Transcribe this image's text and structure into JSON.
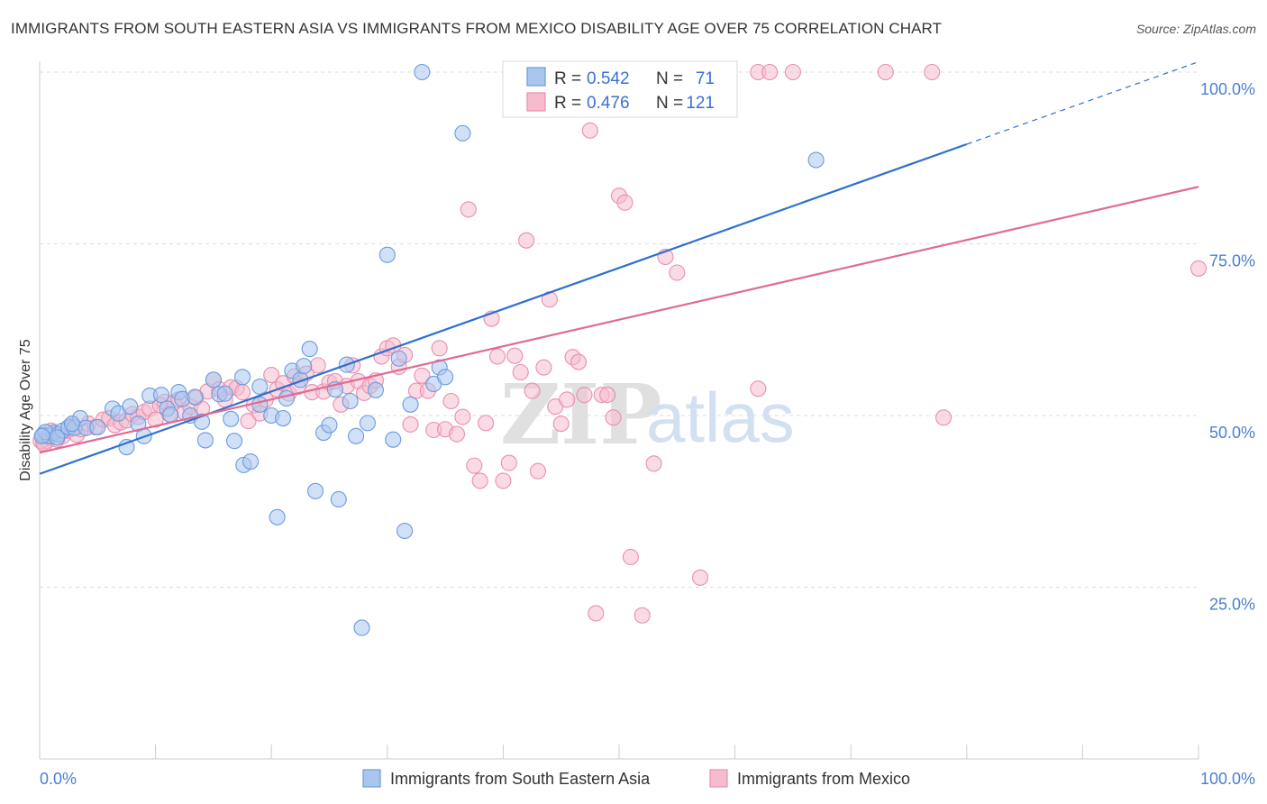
{
  "title": "IMMIGRANTS FROM SOUTH EASTERN ASIA VS IMMIGRANTS FROM MEXICO DISABILITY AGE OVER 75 CORRELATION CHART",
  "source": "Source: ZipAtlas.com",
  "watermark": {
    "zip": "ZIP",
    "atlas": "atlas"
  },
  "stats_box": {
    "series1": {
      "r_label": "R = ",
      "r_value": "0.542",
      "n_label": "N = ",
      "n_value": "71"
    },
    "series2": {
      "r_label": "R = ",
      "r_value": "0.476",
      "n_label": "N = ",
      "n_value": "121"
    }
  },
  "colors": {
    "blue_fill": "#a9c7ee",
    "blue_stroke": "#6b9be0",
    "blue_line": "#2f6fcf",
    "pink_fill": "#f6bccd",
    "pink_stroke": "#e98fad",
    "pink_line": "#e06a96",
    "grid": "#dcdcdc",
    "tick_text": "#4a7fd1"
  },
  "chart_data": {
    "type": "scatter",
    "title": "IMMIGRANTS FROM SOUTH EASTERN ASIA VS IMMIGRANTS FROM MEXICO DISABILITY AGE OVER 75 CORRELATION CHART",
    "xlabel": "",
    "ylabel": "Disability Age Over 75",
    "xlim": [
      0,
      100
    ],
    "ylim": [
      0,
      100
    ],
    "x_tick_labels": [
      "0.0%",
      "100.0%"
    ],
    "y_ticks": [
      {
        "value": 25,
        "label": "25.0%"
      },
      {
        "value": 50,
        "label": "50.0%"
      },
      {
        "value": 75,
        "label": "75.0%"
      },
      {
        "value": 100,
        "label": "100.0%"
      }
    ],
    "grid": true,
    "legend_position": "bottom",
    "series": [
      {
        "name": "Immigrants from South Eastern Asia",
        "color": "#6b9be0",
        "r": 0.542,
        "n": 71,
        "trend": {
          "x0": 0,
          "y0": 41.5,
          "x1": 80,
          "y1": 89.5,
          "dashed_to": {
            "x": 100,
            "y": 101.5
          }
        },
        "points": [
          [
            0.3,
            47.2
          ],
          [
            0.8,
            47.0
          ],
          [
            1.2,
            47.5
          ],
          [
            1.6,
            47.3
          ],
          [
            2.0,
            47.8
          ],
          [
            2.5,
            48.3
          ],
          [
            3.0,
            48.2
          ],
          [
            3.5,
            49.6
          ],
          [
            4.0,
            48.2
          ],
          [
            5.0,
            48.3
          ],
          [
            6.3,
            51.0
          ],
          [
            6.8,
            50.3
          ],
          [
            7.5,
            45.4
          ],
          [
            7.8,
            51.3
          ],
          [
            8.5,
            48.8
          ],
          [
            9.0,
            47.0
          ],
          [
            9.5,
            52.9
          ],
          [
            10.5,
            53.0
          ],
          [
            11.0,
            51.0
          ],
          [
            11.3,
            50.1
          ],
          [
            12.0,
            53.4
          ],
          [
            12.3,
            52.4
          ],
          [
            13.0,
            50.0
          ],
          [
            13.4,
            52.7
          ],
          [
            14.0,
            49.1
          ],
          [
            14.3,
            46.4
          ],
          [
            15.0,
            55.2
          ],
          [
            15.5,
            53.1
          ],
          [
            16.0,
            53.2
          ],
          [
            16.5,
            49.5
          ],
          [
            16.8,
            46.3
          ],
          [
            17.5,
            55.6
          ],
          [
            17.6,
            42.8
          ],
          [
            18.2,
            43.3
          ],
          [
            19.0,
            54.2
          ],
          [
            19.0,
            51.6
          ],
          [
            20.0,
            50.0
          ],
          [
            20.5,
            35.2
          ],
          [
            21.0,
            49.6
          ],
          [
            21.3,
            52.5
          ],
          [
            21.8,
            56.5
          ],
          [
            22.5,
            55.2
          ],
          [
            22.8,
            57.2
          ],
          [
            23.3,
            59.7
          ],
          [
            23.8,
            39.0
          ],
          [
            24.5,
            47.5
          ],
          [
            25.0,
            48.6
          ],
          [
            25.5,
            53.8
          ],
          [
            25.8,
            37.8
          ],
          [
            26.5,
            57.4
          ],
          [
            26.8,
            52.1
          ],
          [
            27.3,
            47.0
          ],
          [
            27.8,
            19.1
          ],
          [
            28.3,
            48.9
          ],
          [
            29.0,
            53.7
          ],
          [
            30.0,
            73.4
          ],
          [
            30.5,
            46.5
          ],
          [
            31.0,
            58.3
          ],
          [
            31.5,
            33.2
          ],
          [
            32.0,
            51.6
          ],
          [
            33.0,
            100.0
          ],
          [
            34.0,
            54.6
          ],
          [
            34.5,
            57.0
          ],
          [
            35.0,
            55.6
          ],
          [
            36.5,
            91.1
          ],
          [
            43.5,
            100.0
          ],
          [
            67.0,
            87.2
          ],
          [
            0.5,
            47.6
          ],
          [
            1.5,
            46.8
          ],
          [
            2.8,
            48.8
          ],
          [
            0.2,
            47.0
          ]
        ]
      },
      {
        "name": "Immigrants from Mexico",
        "color": "#e98fad",
        "r": 0.476,
        "n": 121,
        "trend": {
          "x0": 0,
          "y0": 44.6,
          "x1": 100,
          "y1": 83.3
        },
        "points": [
          [
            0.3,
            46.0
          ],
          [
            0.6,
            46.3
          ],
          [
            0.9,
            46.8
          ],
          [
            1.2,
            47.5
          ],
          [
            1.5,
            46.5
          ],
          [
            2.0,
            47.0
          ],
          [
            2.4,
            47.8
          ],
          [
            2.8,
            48.5
          ],
          [
            3.2,
            47.2
          ],
          [
            3.6,
            48.0
          ],
          [
            4.2,
            48.8
          ],
          [
            4.8,
            48.3
          ],
          [
            5.5,
            49.4
          ],
          [
            6.0,
            49.6
          ],
          [
            6.5,
            48.6
          ],
          [
            7.0,
            49.0
          ],
          [
            7.5,
            49.3
          ],
          [
            8.0,
            50.2
          ],
          [
            8.5,
            49.8
          ],
          [
            9.0,
            50.5
          ],
          [
            9.5,
            51.0
          ],
          [
            10.0,
            49.4
          ],
          [
            10.4,
            51.5
          ],
          [
            10.8,
            52.0
          ],
          [
            11.2,
            50.2
          ],
          [
            11.6,
            51.9
          ],
          [
            12.0,
            52.3
          ],
          [
            12.5,
            50.5
          ],
          [
            13.0,
            51.3
          ],
          [
            13.5,
            52.6
          ],
          [
            14.0,
            51.0
          ],
          [
            14.5,
            53.5
          ],
          [
            15.0,
            55.2
          ],
          [
            15.5,
            53.8
          ],
          [
            16.0,
            52.3
          ],
          [
            16.5,
            54.1
          ],
          [
            17.0,
            54.0
          ],
          [
            17.5,
            53.4
          ],
          [
            18.0,
            49.2
          ],
          [
            18.5,
            51.5
          ],
          [
            19.0,
            50.3
          ],
          [
            19.5,
            52.3
          ],
          [
            20.0,
            55.9
          ],
          [
            20.5,
            53.8
          ],
          [
            21.0,
            54.7
          ],
          [
            21.5,
            53.2
          ],
          [
            22.0,
            55.7
          ],
          [
            22.3,
            54.2
          ],
          [
            23.0,
            56.1
          ],
          [
            23.5,
            53.4
          ],
          [
            24.0,
            57.3
          ],
          [
            24.5,
            53.5
          ],
          [
            25.0,
            54.8
          ],
          [
            25.5,
            55.0
          ],
          [
            26.0,
            51.6
          ],
          [
            26.5,
            54.3
          ],
          [
            27.0,
            57.3
          ],
          [
            27.5,
            55.0
          ],
          [
            28.0,
            53.3
          ],
          [
            28.5,
            54.3
          ],
          [
            29.0,
            55.1
          ],
          [
            29.5,
            58.6
          ],
          [
            30.0,
            59.8
          ],
          [
            30.5,
            60.2
          ],
          [
            31.0,
            57.1
          ],
          [
            31.5,
            58.8
          ],
          [
            32.0,
            48.7
          ],
          [
            32.5,
            53.6
          ],
          [
            33.0,
            55.8
          ],
          [
            33.5,
            53.6
          ],
          [
            34.0,
            47.9
          ],
          [
            34.5,
            59.8
          ],
          [
            35.0,
            48.0
          ],
          [
            35.5,
            52.1
          ],
          [
            36.0,
            47.3
          ],
          [
            36.5,
            49.8
          ],
          [
            37.0,
            80.0
          ],
          [
            37.5,
            42.7
          ],
          [
            38.0,
            40.5
          ],
          [
            38.5,
            48.9
          ],
          [
            39.0,
            64.1
          ],
          [
            39.5,
            58.6
          ],
          [
            40.0,
            40.5
          ],
          [
            40.5,
            43.1
          ],
          [
            41.0,
            58.7
          ],
          [
            41.5,
            56.3
          ],
          [
            42.0,
            75.5
          ],
          [
            42.5,
            53.6
          ],
          [
            43.0,
            41.9
          ],
          [
            43.5,
            57.0
          ],
          [
            44.0,
            66.9
          ],
          [
            44.5,
            51.3
          ],
          [
            45.0,
            48.8
          ],
          [
            45.5,
            52.3
          ],
          [
            46.0,
            58.5
          ],
          [
            46.5,
            57.8
          ],
          [
            47.0,
            53.0
          ],
          [
            47.5,
            91.5
          ],
          [
            48.0,
            21.2
          ],
          [
            48.5,
            53.0
          ],
          [
            49.0,
            53.0
          ],
          [
            49.5,
            49.7
          ],
          [
            50.0,
            82.0
          ],
          [
            50.5,
            81.0
          ],
          [
            51.0,
            29.4
          ],
          [
            52.0,
            20.9
          ],
          [
            53.0,
            43.0
          ],
          [
            54.0,
            73.1
          ],
          [
            55.0,
            70.8
          ],
          [
            57.0,
            26.4
          ],
          [
            62.0,
            53.9
          ],
          [
            62.0,
            100.0
          ],
          [
            63.0,
            100.0
          ],
          [
            65.0,
            100.0
          ],
          [
            73.0,
            100.0
          ],
          [
            77.0,
            100.0
          ],
          [
            78.0,
            49.7
          ],
          [
            100.0,
            71.4
          ],
          [
            0.1,
            46.3
          ],
          [
            0.4,
            45.8
          ],
          [
            1.0,
            47.8
          ]
        ]
      }
    ]
  },
  "legend": {
    "series1_label": "Immigrants from South Eastern Asia",
    "series2_label": "Immigrants from Mexico"
  }
}
